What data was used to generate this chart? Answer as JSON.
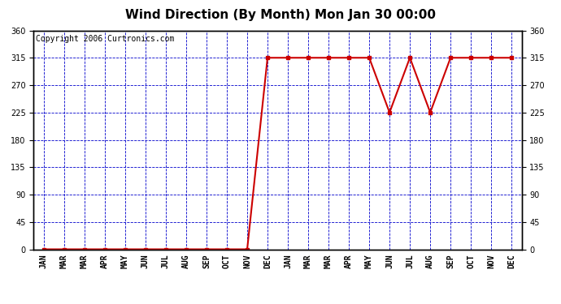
{
  "title": "Wind Direction (By Month) Mon Jan 30 00:00",
  "copyright": "Copyright 2006 Curtronics.com",
  "x_labels": [
    "JAN",
    "MAR",
    "MAR",
    "APR",
    "MAY",
    "JUN",
    "JUL",
    "AUG",
    "SEP",
    "OCT",
    "NOV",
    "DEC",
    "JAN",
    "MAR",
    "MAR",
    "APR",
    "MAY",
    "JUN",
    "JUL",
    "AUG",
    "SEP",
    "OCT",
    "NOV",
    "DEC"
  ],
  "y_values": [
    0,
    0,
    0,
    0,
    0,
    0,
    0,
    0,
    0,
    0,
    0,
    315,
    315,
    315,
    315,
    315,
    315,
    225,
    315,
    225,
    315,
    315,
    315,
    315
  ],
  "y_ticks": [
    0,
    45,
    90,
    135,
    180,
    225,
    270,
    315,
    360
  ],
  "ylim": [
    0,
    360
  ],
  "line_color": "#cc0000",
  "marker": "s",
  "marker_color": "#cc0000",
  "marker_size": 3,
  "bg_color": "#ffffff",
  "grid_color": "#0000cc",
  "title_fontsize": 11,
  "copyright_fontsize": 7,
  "tick_label_fontsize": 7,
  "figsize": [
    6.9,
    3.75
  ],
  "dpi": 100
}
